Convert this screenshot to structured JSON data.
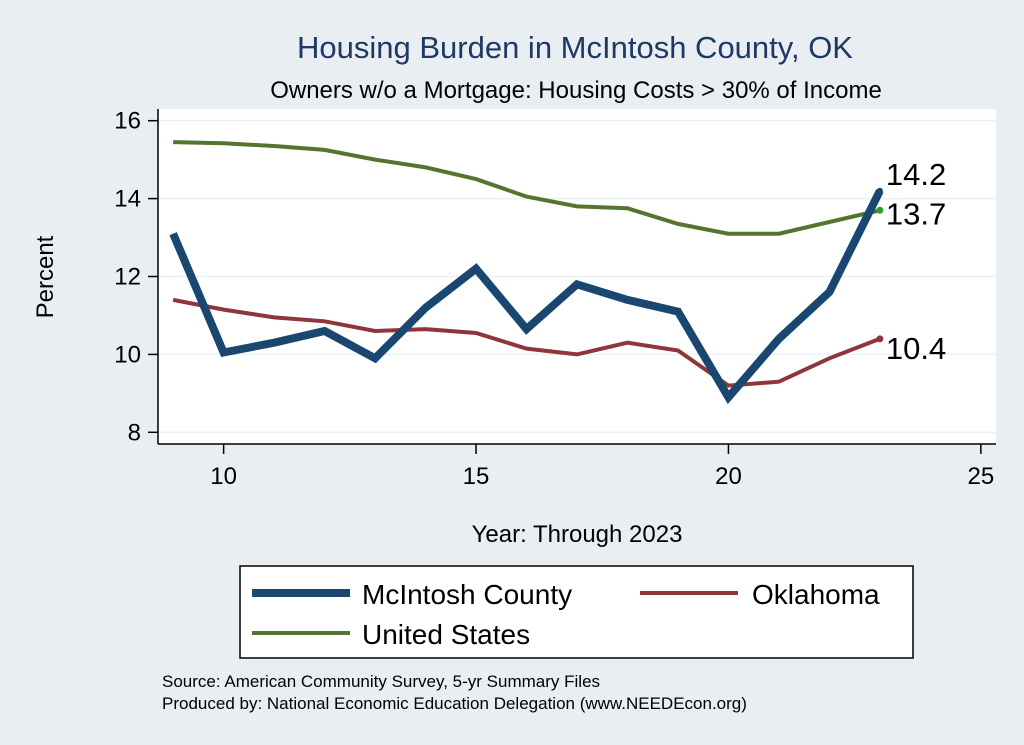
{
  "chart_data": {
    "type": "line",
    "title": "Housing Burden in McIntosh County, OK",
    "subtitle": "Owners w/o a Mortgage: Housing Costs > 30% of Income",
    "xlabel": "Year: Through 2023",
    "ylabel": "Percent",
    "xlim": [
      8.7,
      25.3
    ],
    "ylim": [
      7.7,
      16.3
    ],
    "xticks": [
      10,
      15,
      20,
      25
    ],
    "yticks": [
      8,
      10,
      12,
      14,
      16
    ],
    "x": [
      9,
      10,
      11,
      12,
      13,
      14,
      15,
      16,
      17,
      18,
      19,
      20,
      21,
      22,
      23
    ],
    "series": [
      {
        "name": "McIntosh County",
        "color": "#1a476f",
        "values": [
          13.1,
          10.05,
          10.3,
          10.6,
          9.9,
          11.2,
          12.2,
          10.65,
          11.8,
          11.4,
          11.1,
          8.9,
          10.4,
          11.6,
          14.2
        ],
        "end_label": "14.2"
      },
      {
        "name": "Oklahoma",
        "color": "#90353b",
        "values": [
          11.4,
          11.15,
          10.95,
          10.85,
          10.6,
          10.65,
          10.55,
          10.15,
          10.0,
          10.3,
          10.1,
          9.2,
          9.3,
          9.9,
          10.4
        ],
        "end_label": "10.4"
      },
      {
        "name": "United States",
        "color": "#55752f",
        "values": [
          15.45,
          15.42,
          15.35,
          15.25,
          15.0,
          14.8,
          14.5,
          14.05,
          13.8,
          13.75,
          13.35,
          13.1,
          13.1,
          13.4,
          13.7
        ],
        "end_label": "13.7"
      }
    ],
    "legend_position": "bottom"
  },
  "source_note": "Source: American Community Survey, 5-yr Summary Files",
  "produced_note": "Produced by: National Economic Education Delegation (www.NEEDEcon.org)"
}
